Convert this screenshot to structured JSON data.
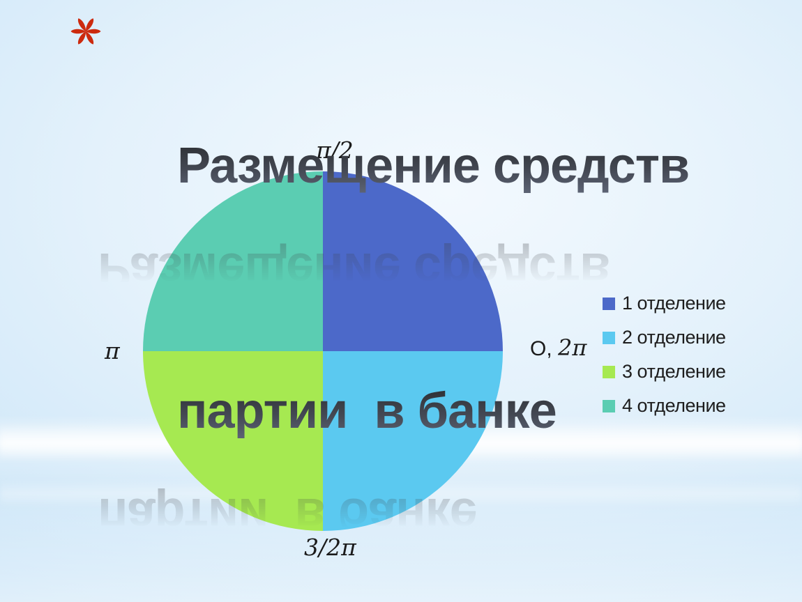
{
  "slide": {
    "title_line1": "Размещение средств",
    "title_line2": "партии  в банке",
    "bullet_color": "#cc2a0e"
  },
  "chart_data": {
    "type": "pie",
    "title": "",
    "labels": [
      "1 отделение",
      "2 отделение",
      "3 отделение",
      "4 отделение"
    ],
    "values": [
      25,
      25,
      25,
      25
    ],
    "colors": [
      "#4c69c9",
      "#5bc9f0",
      "#a6e951",
      "#5bcdb2"
    ],
    "start_angle_deg": 90,
    "direction": "clockwise",
    "legend_position": "right",
    "annotations": {
      "top": "π/2",
      "left": "π",
      "bottom": "3/2π",
      "right_prefix": "O,",
      "right_value": "2π"
    }
  }
}
